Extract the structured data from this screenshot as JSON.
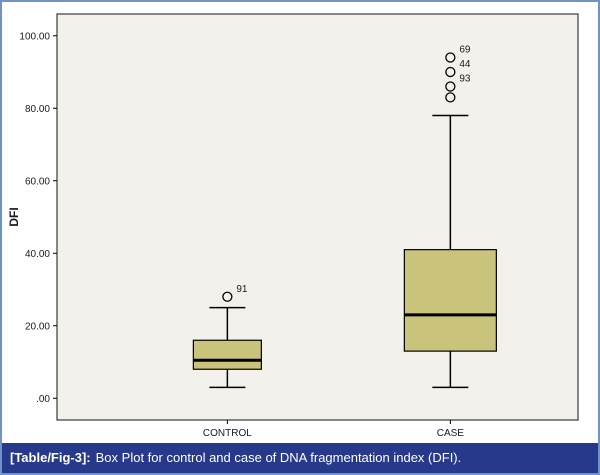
{
  "caption": {
    "prefix": "[Table/Fig-3]:",
    "text": "Box Plot for control and case of DNA fragmentation index (DFI)."
  },
  "frame": {
    "border_color": "#7192c4",
    "caption_bg": "#27398b",
    "caption_color": "#ffffff"
  },
  "chart_data": {
    "type": "boxplot",
    "title": "",
    "xlabel": "",
    "ylabel": "DFI",
    "categories": [
      "CONTROL",
      "CASE"
    ],
    "ytick_labels": [
      ".00",
      "20.00",
      "40.00",
      "60.00",
      "80.00",
      "100.00"
    ],
    "ytick_values": [
      0,
      20,
      40,
      60,
      80,
      100
    ],
    "ylim": [
      -6,
      106
    ],
    "grid": false,
    "legend": "none",
    "series": [
      {
        "category": "CONTROL",
        "whisker_low": 3,
        "q1": 8,
        "median": 10.5,
        "q3": 16,
        "whisker_high": 25,
        "outliers": [
          {
            "value": 28,
            "label": "91"
          }
        ]
      },
      {
        "category": "CASE",
        "whisker_low": 3,
        "q1": 13,
        "median": 23,
        "q3": 41,
        "whisker_high": 78,
        "outliers": [
          {
            "value": 94,
            "label": "69"
          },
          {
            "value": 90,
            "label": "44"
          },
          {
            "value": 86,
            "label": "93"
          },
          {
            "value": 83,
            "label": ""
          }
        ]
      }
    ],
    "colors": {
      "box_fill": "#c9c37c",
      "box_stroke": "#000000",
      "median": "#000000",
      "whisker": "#000000",
      "outlier_stroke": "#000000",
      "plot_bg": "#f2f1ec",
      "plot_border": "#3a3a3a",
      "text": "#1a1a1a"
    }
  }
}
